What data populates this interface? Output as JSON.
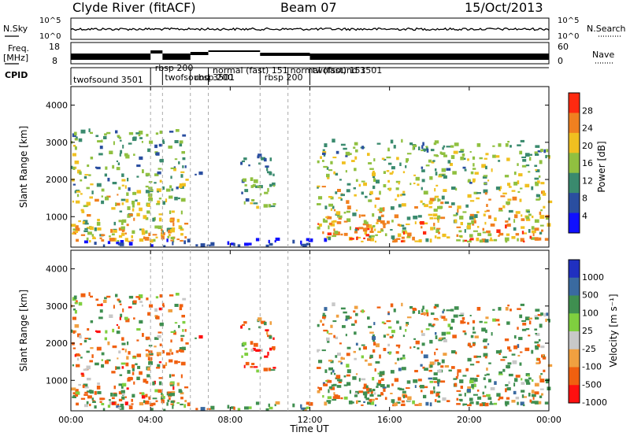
{
  "header": {
    "station": "Clyde River (fitACF)",
    "beam": "Beam 07",
    "date": "15/Oct/2013"
  },
  "noise_panel": {
    "left_label": "N.Sky",
    "right_label": "N.Search",
    "left_ticks": [
      "10^5",
      "10^0"
    ],
    "right_ticks": [
      "10^5",
      "10^0"
    ]
  },
  "freq_panel": {
    "left_label_1": "Freq.",
    "left_label_2": "[MHz]",
    "right_label": "Nave",
    "left_ticks": [
      "18",
      "8"
    ],
    "right_ticks": [
      "60",
      "0"
    ]
  },
  "cpid_panel": {
    "label": "CPID",
    "modes": [
      {
        "text": "twofsound  3501",
        "start_h": 0.0
      },
      {
        "text": "rbsp  200",
        "start_h": 4.1
      },
      {
        "text": "twofsound  3501",
        "start_h": 4.6
      },
      {
        "text": "rbsp  200",
        "start_h": 6.1
      },
      {
        "text": "normal (fast)  151",
        "start_h": 7.0
      },
      {
        "text": "rbsp  200",
        "start_h": 9.6
      },
      {
        "text": "normal (fast)  151",
        "start_h": 10.9
      },
      {
        "text": "twofsound  3501",
        "start_h": 12.0
      }
    ],
    "boundaries_h": [
      4.0,
      4.6,
      6.0,
      6.9,
      9.5,
      10.9,
      12.0
    ]
  },
  "power_panel": {
    "ylabel": "Slant Range [km]",
    "cbar_label": "Power [dB]",
    "cbar_ticks": [
      "28",
      "24",
      "20",
      "16",
      "12",
      "8",
      "4"
    ]
  },
  "velocity_panel": {
    "ylabel": "Slant Range [km]",
    "cbar_label": "Velocity [m s⁻¹]",
    "cbar_ticks": [
      "1000",
      "500",
      "100",
      "25",
      "-25",
      "-100",
      "-500",
      "-1000"
    ]
  },
  "xaxis": {
    "label": "Time UT",
    "ticks": [
      "00:00",
      "04:00",
      "08:00",
      "12:00",
      "16:00",
      "20:00",
      "00:00"
    ]
  },
  "y_ticks": [
    "4000",
    "3000",
    "2000",
    "1000"
  ],
  "chart_data": {
    "type": "heatmap",
    "title": "Clyde River (fitACF)  Beam 07  15/Oct/2013",
    "xlabel": "Time UT",
    "xlim_hours": [
      0,
      24
    ],
    "ylim_km": [
      180,
      4500
    ],
    "power_scale_db": [
      0,
      32
    ],
    "velocity_scale_ms": [
      -1200,
      1200
    ],
    "power_colors": [
      "#1010ff",
      "#2a4ea0",
      "#3a8a6e",
      "#90c040",
      "#f0c020",
      "#f08020",
      "#ff2a10"
    ],
    "velocity_colors": [
      "#2030c0",
      "#3a6aa0",
      "#3f8f50",
      "#7fcf3f",
      "#c8c8c8",
      "#f0a040",
      "#f06010",
      "#ff1010"
    ],
    "echo_regions": [
      {
        "t_start": 0.0,
        "t_end": 5.8,
        "r_low": 300,
        "r_high": 3300,
        "peak_power_db": 28,
        "mean_velocity_ms": -100
      },
      {
        "t_start": 6.2,
        "t_end": 6.5,
        "r_low": 1900,
        "r_high": 2200,
        "peak_power_db": 12,
        "mean_velocity_ms": -200
      },
      {
        "t_start": 8.5,
        "t_end": 10.2,
        "r_low": 1200,
        "r_high": 2600,
        "peak_power_db": 20,
        "mean_velocity_ms": -300
      },
      {
        "t_start": 0.0,
        "t_end": 13.0,
        "r_low": 180,
        "r_high": 350,
        "peak_power_db": 8,
        "mean_velocity_ms": 100
      },
      {
        "t_start": 12.3,
        "t_end": 24.0,
        "r_low": 300,
        "r_high": 3000,
        "peak_power_db": 30,
        "mean_velocity_ms": 100
      }
    ]
  }
}
